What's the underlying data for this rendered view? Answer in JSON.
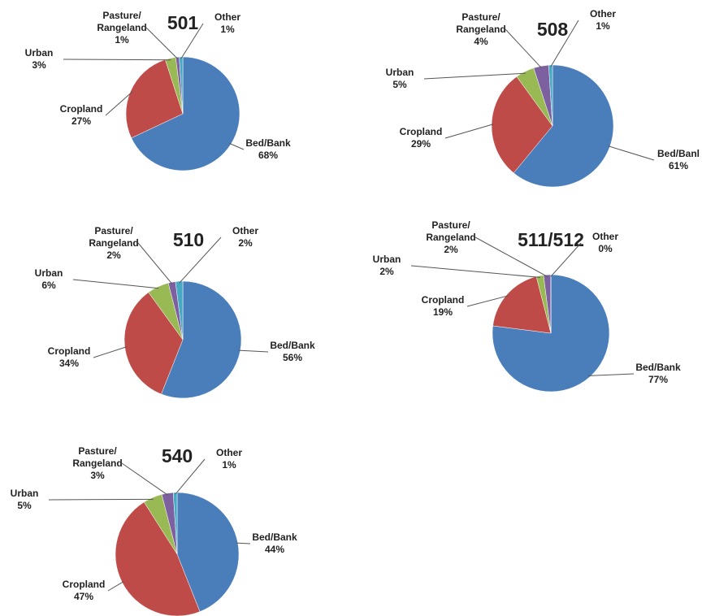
{
  "chart_data": [
    {
      "type": "pie",
      "title": "501",
      "categories": [
        "Bed/Bank",
        "Cropland",
        "Urban",
        "Pasture/Rangeland",
        "Other"
      ],
      "values": [
        68,
        27,
        3,
        1,
        1
      ],
      "value_labels": [
        "68%",
        "27%",
        "3%",
        "1%",
        "1%"
      ],
      "colors": [
        "#4a7ebb",
        "#be4b48",
        "#98b954",
        "#7d60a0",
        "#46aac5"
      ]
    },
    {
      "type": "pie",
      "title": "508",
      "categories": [
        "Bed/Banl",
        "Cropland",
        "Urban",
        "Pasture/Rangeland",
        "Other"
      ],
      "values": [
        61,
        29,
        5,
        4,
        1
      ],
      "value_labels": [
        "61%",
        "29%",
        "5%",
        "4%",
        "1%"
      ],
      "colors": [
        "#4a7ebb",
        "#be4b48",
        "#98b954",
        "#7d60a0",
        "#46aac5"
      ]
    },
    {
      "type": "pie",
      "title": "510",
      "categories": [
        "Bed/Bank",
        "Cropland",
        "Urban",
        "Pasture/Rangeland",
        "Other"
      ],
      "values": [
        56,
        34,
        6,
        2,
        2
      ],
      "value_labels": [
        "56%",
        "34%",
        "6%",
        "2%",
        "2%"
      ],
      "colors": [
        "#4a7ebb",
        "#be4b48",
        "#98b954",
        "#7d60a0",
        "#46aac5"
      ]
    },
    {
      "type": "pie",
      "title": "511/512",
      "categories": [
        "Bed/Bank",
        "Cropland",
        "Urban",
        "Pasture/Rangeland",
        "Other"
      ],
      "values": [
        77,
        19,
        2,
        2,
        0
      ],
      "value_labels": [
        "77%",
        "19%",
        "2%",
        "2%",
        "0%"
      ],
      "colors": [
        "#4a7ebb",
        "#be4b48",
        "#98b954",
        "#7d60a0",
        "#46aac5"
      ]
    },
    {
      "type": "pie",
      "title": "540",
      "categories": [
        "Bed/Bank",
        "Cropland",
        "Urban",
        "Pasture/Rangeland",
        "Other"
      ],
      "values": [
        44,
        47,
        5,
        3,
        1
      ],
      "value_labels": [
        "44%",
        "47%",
        "5%",
        "3%",
        "1%"
      ],
      "colors": [
        "#4a7ebb",
        "#be4b48",
        "#98b954",
        "#7d60a0",
        "#46aac5"
      ]
    }
  ]
}
